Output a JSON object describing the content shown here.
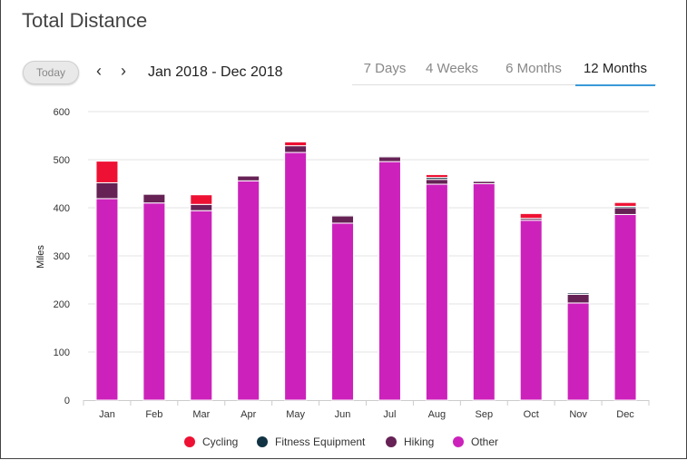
{
  "header": {
    "title": "Total Distance",
    "today_label": "Today",
    "date_range": "Jan 2018 - Dec 2018"
  },
  "tabs": [
    {
      "label": "7 Days",
      "active": false
    },
    {
      "label": "4 Weeks",
      "active": false
    },
    {
      "label": "6 Months",
      "active": false
    },
    {
      "label": "12 Months",
      "active": true
    }
  ],
  "chart_data": {
    "type": "bar",
    "stacked": true,
    "ylabel": "Miles",
    "ylim": [
      0,
      600
    ],
    "yticks": [
      0,
      100,
      200,
      300,
      400,
      500,
      600
    ],
    "grid": true,
    "legend_position": "bottom",
    "categories": [
      "Jan",
      "Feb",
      "Mar",
      "Apr",
      "May",
      "Jun",
      "Jul",
      "Aug",
      "Sep",
      "Oct",
      "Nov",
      "Dec"
    ],
    "series": [
      {
        "name": "Other",
        "color": "#cc22bb",
        "values": [
          419,
          410,
          394,
          456,
          515,
          368,
          496,
          449,
          450,
          374,
          202,
          386
        ]
      },
      {
        "name": "Hiking",
        "color": "#662255",
        "values": [
          33,
          18,
          13,
          10,
          14,
          15,
          10,
          10,
          5,
          4,
          18,
          14
        ]
      },
      {
        "name": "Fitness Equipment",
        "color": "#113344",
        "values": [
          0,
          0,
          0,
          0,
          0,
          2,
          2,
          4,
          2,
          0,
          3,
          3
        ]
      },
      {
        "name": "Cycling",
        "color": "#ee1133",
        "values": [
          45,
          0,
          20,
          0,
          8,
          0,
          0,
          6,
          0,
          10,
          0,
          8
        ]
      }
    ]
  },
  "legend": [
    {
      "label": "Cycling",
      "color": "#ee1133"
    },
    {
      "label": "Fitness Equipment",
      "color": "#113344"
    },
    {
      "label": "Hiking",
      "color": "#662255"
    },
    {
      "label": "Other",
      "color": "#cc22bb"
    }
  ]
}
